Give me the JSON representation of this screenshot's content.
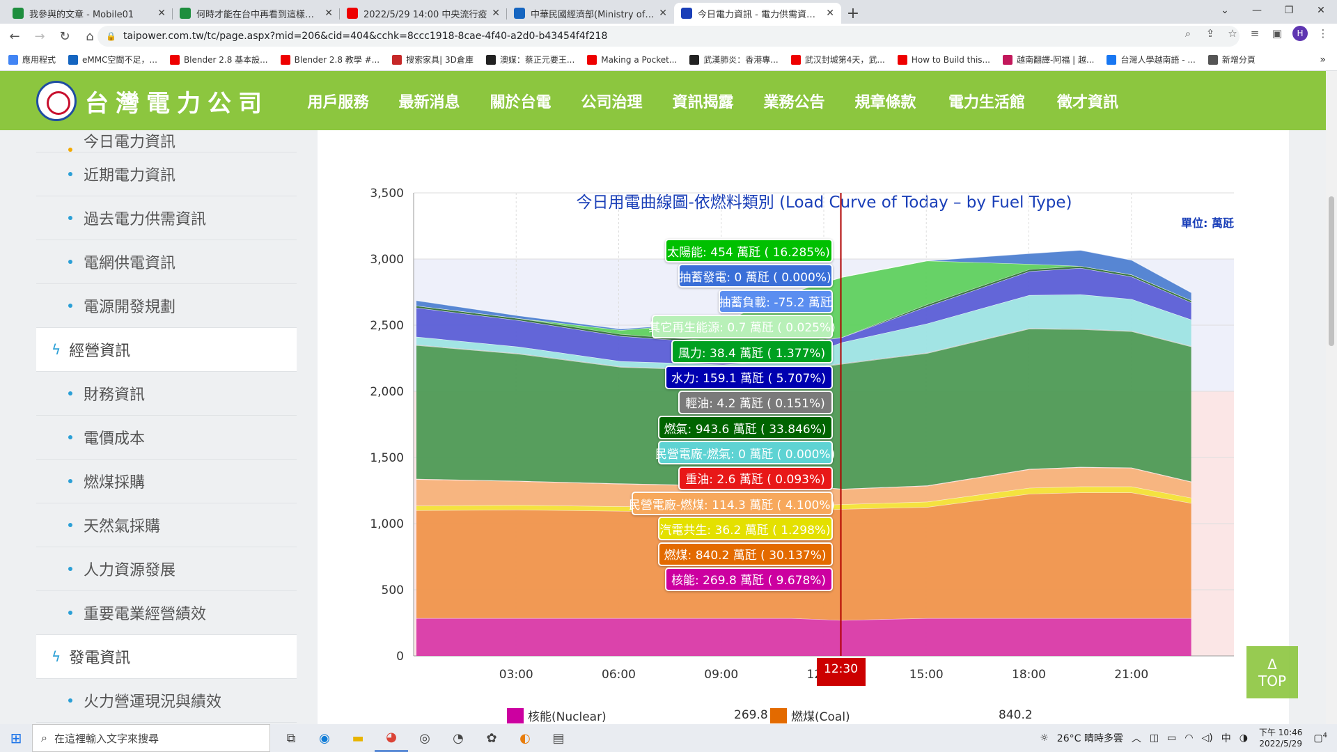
{
  "browser": {
    "tabs": [
      {
        "title": "我參與的文章 - Mobile01",
        "color": "#1e8e3e"
      },
      {
        "title": "何時才能在台中再看到這樣的藍",
        "color": "#1e8e3e"
      },
      {
        "title": "2022/5/29 14:00 中央流行疫",
        "color": "#e00"
      },
      {
        "title": "中華民國經濟部(Ministry of Eco",
        "color": "#1565c0"
      },
      {
        "title": "今日電力資訊 - 電力供需資訊 - 台",
        "color": "#1a3fb8"
      }
    ],
    "new_tab": "+",
    "url": "taipower.com.tw/tc/page.aspx?mid=206&cid=404&cchk=8ccc1918-8cae-4f40-a2d0-b43454f4f218",
    "profile_initial": "H",
    "bookmarks": [
      {
        "label": "應用程式",
        "color": "#4285f4"
      },
      {
        "label": "eMMC空間不足，...",
        "color": "#1565c0"
      },
      {
        "label": "Blender 2.8 基本設...",
        "color": "#e00"
      },
      {
        "label": "Blender 2.8 教學 #...",
        "color": "#e00"
      },
      {
        "label": "搜索家具| 3D倉庫",
        "color": "#c62828"
      },
      {
        "label": "澳媒：蔡正元要王...",
        "color": "#222"
      },
      {
        "label": "Making a Pocket...",
        "color": "#e00"
      },
      {
        "label": "武漢肺炎：香港專...",
        "color": "#222"
      },
      {
        "label": "武汉封城第4天，武...",
        "color": "#e00"
      },
      {
        "label": "How to Build this...",
        "color": "#e00"
      },
      {
        "label": "越南翻譯-阿福 | 越...",
        "color": "#c2185b"
      },
      {
        "label": "台灣人學越南語 - ...",
        "color": "#1877f2"
      },
      {
        "label": "新增分頁",
        "color": "#555"
      }
    ]
  },
  "site": {
    "logo_text": "台灣電力公司",
    "nav": [
      "用戶服務",
      "最新消息",
      "關於台電",
      "公司治理",
      "資訊揭露",
      "業務公告",
      "規章條款",
      "電力生活館",
      "徵才資訊"
    ],
    "selected_nav": 4
  },
  "sidebar": {
    "top_item": "今日電力資訊",
    "group1": [
      "近期電力資訊",
      "過去電力供需資訊",
      "電網供電資訊",
      "電源開發規劃"
    ],
    "head2": "經營資訊",
    "group2": [
      "財務資訊",
      "電價成本",
      "燃煤採購",
      "天然氣採購",
      "人力資源發展",
      "重要電業經營績效"
    ],
    "head3": "發電資訊",
    "group3": [
      "火力營運現況與績效"
    ]
  },
  "chart": {
    "title": "今日用電曲線圖-依燃料類別 (Load Curve of Today – by Fuel Type)",
    "unit": "單位: 萬瓩",
    "current_time": "12:30",
    "top_button": [
      "Δ",
      "TOP"
    ]
  },
  "chart_data": {
    "type": "area",
    "stacked": true,
    "y_ticks": [
      "0",
      "500",
      "1,000",
      "1,500",
      "2,000",
      "2,500",
      "3,000",
      "3,500"
    ],
    "x_ticks": [
      "03:00",
      "06:00",
      "09:00",
      "12:00",
      "15:00",
      "18:00",
      "21:00"
    ],
    "ylim": [
      0,
      3500
    ],
    "x_range_hours": [
      0,
      24
    ],
    "data_end_hour": 22.75,
    "cursor_hour": 12.5,
    "times": [
      0,
      3,
      6,
      9,
      11,
      12.5,
      15,
      18,
      19.5,
      21,
      22.75
    ],
    "series": [
      {
        "name": "核能",
        "color": "#d93aa8",
        "values": [
          285,
          285,
          285,
          285,
          285,
          270,
          285,
          285,
          285,
          285,
          285
        ]
      },
      {
        "name": "燃煤",
        "color": "#f0954c",
        "values": [
          815,
          820,
          810,
          800,
          810,
          840,
          840,
          940,
          950,
          950,
          870
        ]
      },
      {
        "name": "汽電共生",
        "color": "#f3e236",
        "values": [
          35,
          35,
          35,
          35,
          35,
          36,
          40,
          45,
          45,
          45,
          40
        ]
      },
      {
        "name": "民營電廠-燃煤",
        "color": "#f7b27a",
        "values": [
          200,
          180,
          170,
          165,
          165,
          114,
          120,
          140,
          145,
          140,
          120
        ]
      },
      {
        "name": "重油",
        "color": "#e62020",
        "values": [
          3,
          3,
          3,
          3,
          3,
          2.6,
          3,
          3,
          3,
          3,
          3
        ]
      },
      {
        "name": "民營電廠-燃氣",
        "color": "#6fd5d5",
        "values": [
          0,
          0,
          0,
          0,
          0,
          0,
          0,
          0,
          0,
          0,
          0
        ]
      },
      {
        "name": "燃氣",
        "color": "#4e9a55",
        "values": [
          1010,
          960,
          880,
          870,
          860,
          944,
          1000,
          1060,
          1040,
          1030,
          1020
        ]
      },
      {
        "name": "輕油",
        "color": "#888888",
        "values": [
          4,
          4,
          4,
          4,
          4,
          4.2,
          4,
          4,
          4,
          4,
          4
        ]
      },
      {
        "name": "水力",
        "color": "#9de3e3",
        "values": [
          60,
          50,
          40,
          40,
          70,
          159,
          220,
          250,
          260,
          240,
          200
        ]
      },
      {
        "name": "風力",
        "color": "#5b5ed6",
        "values": [
          220,
          200,
          190,
          160,
          120,
          38,
          130,
          180,
          200,
          170,
          130
        ]
      },
      {
        "name": "其它再生能源",
        "color": "#2f6f37",
        "values": [
          15,
          15,
          15,
          15,
          15,
          1,
          15,
          15,
          15,
          15,
          15
        ]
      },
      {
        "name": "太陽能",
        "color": "#5fd05f",
        "values": [
          0,
          0,
          30,
          150,
          380,
          454,
          330,
          40,
          0,
          0,
          0
        ]
      },
      {
        "name": "抽蓄發電",
        "color": "#4e7fd1",
        "values": [
          40,
          20,
          10,
          0,
          0,
          0,
          0,
          80,
          120,
          110,
          60
        ]
      }
    ],
    "tooltip": [
      {
        "label": "太陽能: 454 萬瓩 ( 16.285%)",
        "color": "#00c000"
      },
      {
        "label": "抽蓄發電: 0 萬瓩 ( 0.000%)",
        "color": "#3a6fd8"
      },
      {
        "label": "抽蓄負載: -75.2 萬瓩",
        "color": "#5b8ef0"
      },
      {
        "label": "其它再生能源: 0.7 萬瓩 ( 0.025%)",
        "color": "#b8f0b8"
      },
      {
        "label": "風力: 38.4 萬瓩 ( 1.377%)",
        "color": "#00a020"
      },
      {
        "label": "水力: 159.1 萬瓩 ( 5.707%)",
        "color": "#0000b0"
      },
      {
        "label": "輕油: 4.2 萬瓩 ( 0.151%)",
        "color": "#7a7a7a"
      },
      {
        "label": "燃氣: 943.6 萬瓩 ( 33.846%)",
        "color": "#006400"
      },
      {
        "label": "民營電廠-燃氣: 0 萬瓩 ( 0.000%)",
        "color": "#5ed3d3"
      },
      {
        "label": "重油: 2.6 萬瓩 ( 0.093%)",
        "color": "#e81818"
      },
      {
        "label": "民營電廠-燃煤: 114.3 萬瓩 ( 4.100%)",
        "color": "#f7a85c"
      },
      {
        "label": "汽電共生: 36.2 萬瓩 ( 1.298%)",
        "color": "#e4e000"
      },
      {
        "label": "燃煤: 840.2 萬瓩 ( 30.137%)",
        "color": "#e36a00"
      },
      {
        "label": "核能: 269.8 萬瓩 ( 9.678%)",
        "color": "#cc00a0"
      }
    ],
    "legend": [
      {
        "name": "核能(Nuclear)",
        "value": "269.8",
        "color": "#cc00a0"
      },
      {
        "name": "燃煤(Coal)",
        "value": "840.2",
        "color": "#e36a00"
      }
    ]
  },
  "taskbar": {
    "search_placeholder": "在這裡輸入文字來搜尋",
    "weather": "26°C 晴時多雲",
    "ime": "中",
    "time": "下午 10:46",
    "date": "2022/5/29",
    "notifications": "4"
  }
}
